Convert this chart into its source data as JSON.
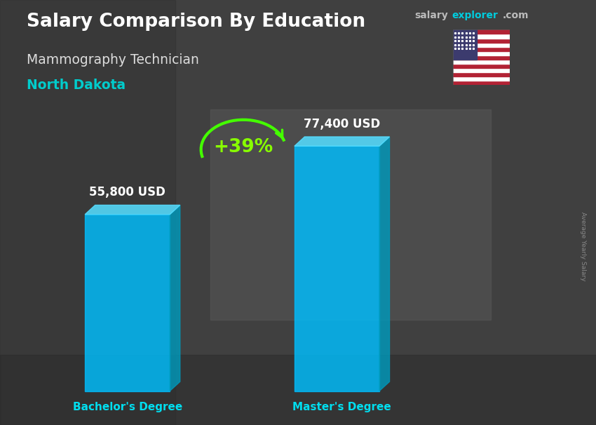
{
  "title_main": "Salary Comparison By Education",
  "title_sub": "Mammography Technician",
  "title_location": "North Dakota",
  "categories": [
    "Bachelor's Degree",
    "Master's Degree"
  ],
  "values": [
    55800,
    77400
  ],
  "labels": [
    "55,800 USD",
    "77,400 USD"
  ],
  "pct_change": "+39%",
  "bar_color_front": "#00BFFF",
  "bar_color_side": "#0099BB",
  "bar_color_top": "#55DDFF",
  "bg_dark": "#3a3a3a",
  "bg_mid": "#4a4a4a",
  "bg_light": "#5a5a5a",
  "title_color": "#FFFFFF",
  "subtitle_color": "#DDDDDD",
  "location_color": "#00CCCC",
  "label_color": "#FFFFFF",
  "cat_label_color": "#00DDEE",
  "pct_color": "#88FF00",
  "arrow_color": "#44FF00",
  "site_salary_color": "#BBBBBB",
  "site_explorer_color": "#00CCDD",
  "watermark_color": "#888888",
  "watermark_text": "Average Yearly Salary",
  "ymax": 90000,
  "bar_alpha": 0.82
}
